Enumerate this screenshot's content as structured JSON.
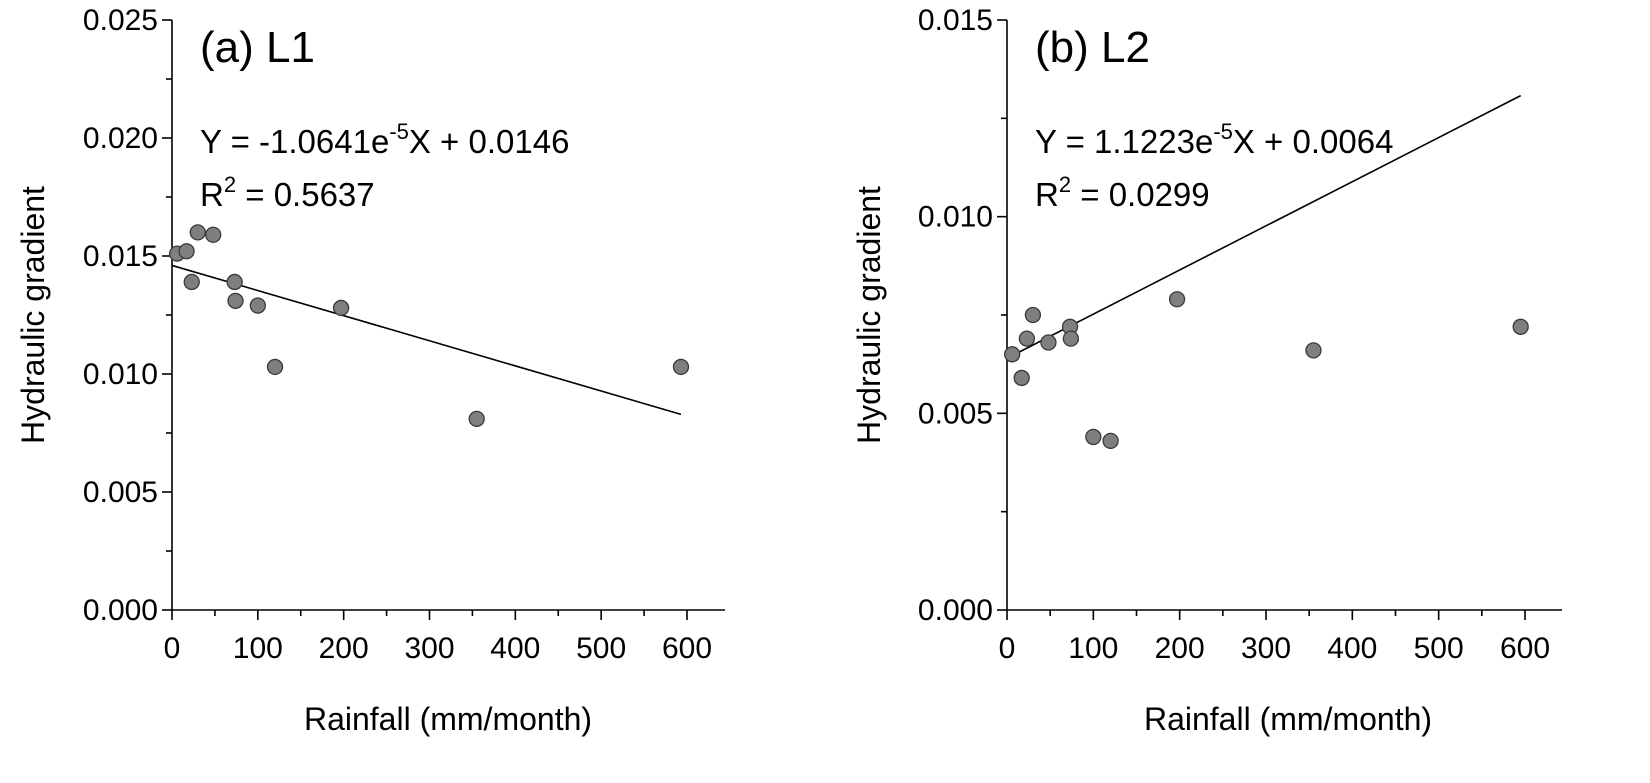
{
  "chart_data": [
    {
      "type": "scatter",
      "panel_label": "(a) L1",
      "equation_prefix": "Y = -1.0641e",
      "equation_exp": "-5",
      "equation_suffix": "X + 0.0146",
      "r2_prefix": "R",
      "r2_exp": "2",
      "r2_suffix": " = 0.5637",
      "xlabel": "Rainfall (mm/month)",
      "ylabel": "Hydraulic gradient",
      "xlim": [
        0,
        650
      ],
      "ylim": [
        0,
        0.025
      ],
      "xticks": [
        0,
        100,
        200,
        300,
        400,
        500,
        600
      ],
      "yticks": [
        0.0,
        0.005,
        0.01,
        0.015,
        0.02,
        0.025
      ],
      "xtick_labels": [
        "0",
        "100",
        "200",
        "300",
        "400",
        "500",
        "600"
      ],
      "ytick_labels": [
        "0.000",
        "0.005",
        "0.010",
        "0.015",
        "0.020",
        "0.025"
      ],
      "x": [
        6,
        17,
        23,
        30,
        48,
        73,
        74,
        100,
        120,
        197,
        355,
        593
      ],
      "y": [
        0.0151,
        0.0152,
        0.0139,
        0.016,
        0.0159,
        0.0139,
        0.0131,
        0.0129,
        0.0103,
        0.0128,
        0.0081,
        0.0103
      ],
      "fit": {
        "slope": -1.0641e-05,
        "intercept": 0.0146,
        "x_range": [
          0,
          593
        ]
      },
      "point_color": "#7f7f7f"
    },
    {
      "type": "scatter",
      "panel_label": "(b) L2",
      "equation_prefix": "Y = 1.1223e",
      "equation_exp": "-5",
      "equation_suffix": "X + 0.0064",
      "r2_prefix": "R",
      "r2_exp": "2",
      "r2_suffix": " = 0.0299",
      "xlabel": "Rainfall (mm/month)",
      "ylabel": "Hydraulic gradient",
      "xlim": [
        0,
        650
      ],
      "ylim": [
        0,
        0.015
      ],
      "xticks": [
        0,
        100,
        200,
        300,
        400,
        500,
        600
      ],
      "yticks": [
        0.0,
        0.005,
        0.01,
        0.015
      ],
      "xtick_labels": [
        "0",
        "100",
        "200",
        "300",
        "400",
        "500",
        "600"
      ],
      "ytick_labels": [
        "0.000",
        "0.005",
        "0.010",
        "0.015"
      ],
      "x": [
        6,
        17,
        23,
        30,
        48,
        73,
        74,
        100,
        120,
        197,
        355,
        595
      ],
      "y": [
        0.0065,
        0.0059,
        0.0069,
        0.0075,
        0.0068,
        0.0072,
        0.0069,
        0.0044,
        0.0043,
        0.0079,
        0.0066,
        0.0072
      ],
      "fit": {
        "slope": 1.1223e-05,
        "intercept": 0.0064,
        "x_range": [
          0,
          595
        ]
      },
      "point_color": "#7f7f7f"
    }
  ]
}
